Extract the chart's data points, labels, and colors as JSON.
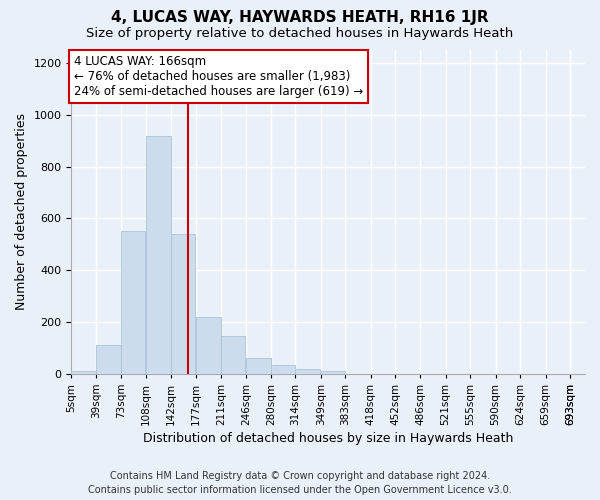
{
  "title": "4, LUCAS WAY, HAYWARDS HEATH, RH16 1JR",
  "subtitle": "Size of property relative to detached houses in Haywards Heath",
  "xlabel": "Distribution of detached houses by size in Haywards Heath",
  "ylabel": "Number of detached properties",
  "bin_edges": [
    5,
    39,
    73,
    108,
    142,
    177,
    211,
    246,
    280,
    314,
    349,
    383,
    418,
    452,
    486,
    521,
    555,
    590,
    624,
    659,
    693
  ],
  "bar_heights": [
    10,
    110,
    550,
    920,
    540,
    220,
    145,
    60,
    35,
    20,
    10,
    0,
    0,
    0,
    0,
    0,
    0,
    0,
    0,
    0
  ],
  "bar_color": "#ccdcec",
  "bar_edgecolor": "#a8c4d8",
  "property_size": 166,
  "vline_color": "#cc0000",
  "annotation_line1": "4 LUCAS WAY: 166sqm",
  "annotation_line2": "← 76% of detached houses are smaller (1,983)",
  "annotation_line3": "24% of semi-detached houses are larger (619) →",
  "annotation_box_color": "#ffffff",
  "annotation_border_color": "#cc0000",
  "ylim": [
    0,
    1250
  ],
  "yticks": [
    0,
    200,
    400,
    600,
    800,
    1000,
    1200
  ],
  "footer_line1": "Contains HM Land Registry data © Crown copyright and database right 2024.",
  "footer_line2": "Contains public sector information licensed under the Open Government Licence v3.0.",
  "bg_color": "#eaf0f8",
  "grid_color": "#ffffff",
  "title_fontsize": 11,
  "subtitle_fontsize": 9.5,
  "tick_label_fontsize": 7.5,
  "ylabel_fontsize": 9,
  "xlabel_fontsize": 9,
  "annotation_fontsize": 8.5,
  "footer_fontsize": 7
}
